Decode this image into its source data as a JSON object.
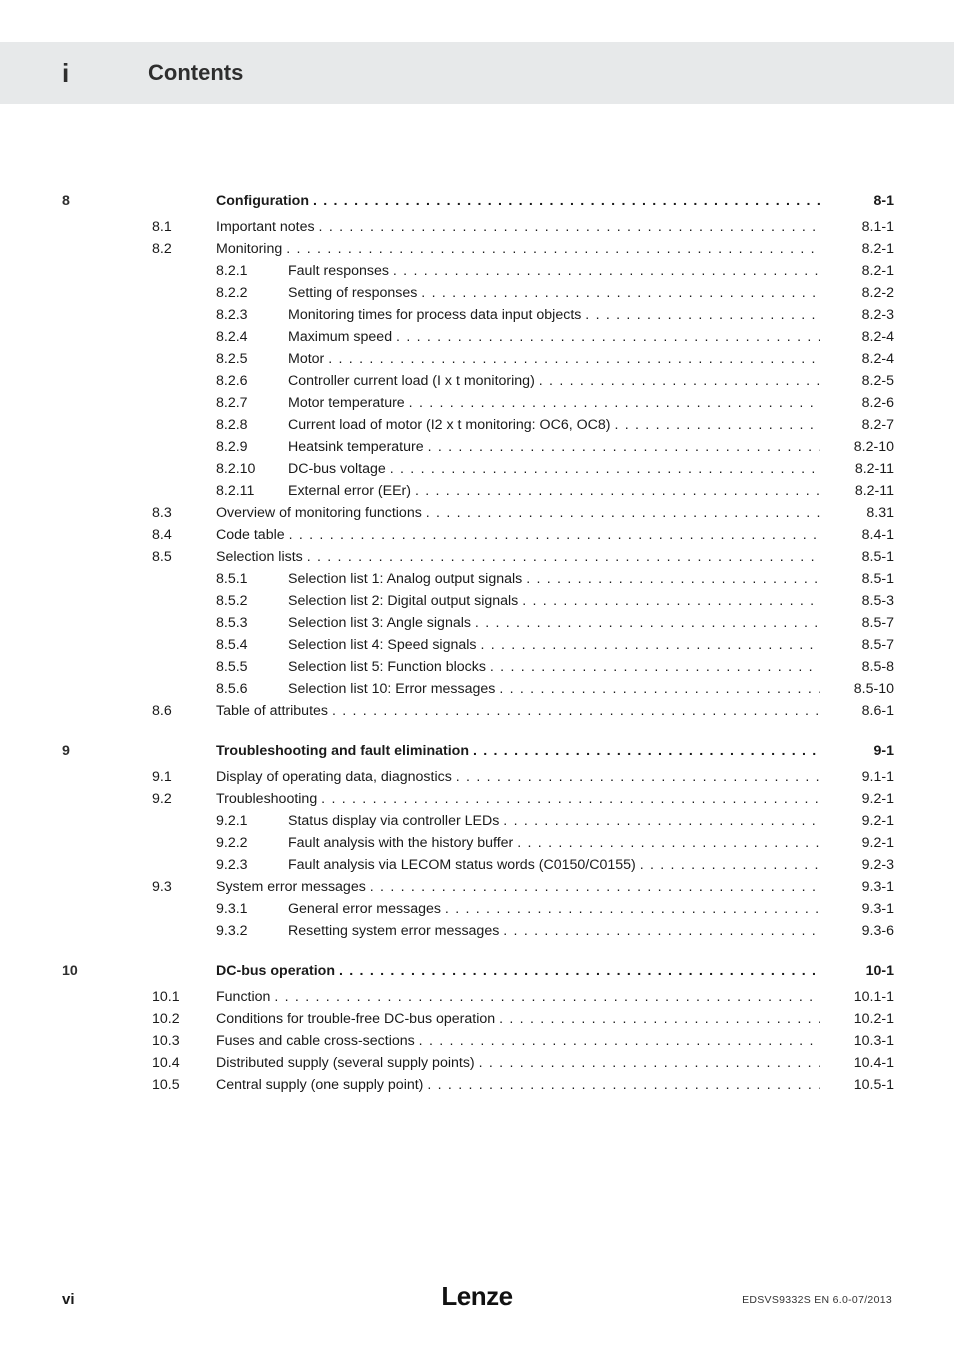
{
  "header": {
    "marker": "i",
    "title": "Contents"
  },
  "footer": {
    "page_roman": "vi",
    "logo": "Lenze",
    "doc_id": "EDSVS9332S EN 6.0-07/2013"
  },
  "rows": [
    {
      "type": "chap",
      "chap": "8",
      "label": "Configuration",
      "page": "8-1",
      "bold": true
    },
    {
      "type": "sec",
      "sec": "8.1",
      "label": "Important notes",
      "page": "8.1-1"
    },
    {
      "type": "sec",
      "sec": "8.2",
      "label": "Monitoring",
      "page": "8.2-1"
    },
    {
      "type": "sub",
      "sub": "8.2.1",
      "label": "Fault responses",
      "page": "8.2-1"
    },
    {
      "type": "sub",
      "sub": "8.2.2",
      "label": "Setting of responses",
      "page": "8.2-2"
    },
    {
      "type": "sub",
      "sub": "8.2.3",
      "label": "Monitoring times for process data input objects",
      "page": "8.2-3"
    },
    {
      "type": "sub",
      "sub": "8.2.4",
      "label": "Maximum speed",
      "page": "8.2-4"
    },
    {
      "type": "sub",
      "sub": "8.2.5",
      "label": "Motor",
      "page": "8.2-4"
    },
    {
      "type": "sub",
      "sub": "8.2.6",
      "label": "Controller current load (I x t monitoring)",
      "page": "8.2-5"
    },
    {
      "type": "sub",
      "sub": "8.2.7",
      "label": "Motor temperature",
      "page": "8.2-6"
    },
    {
      "type": "sub",
      "sub": "8.2.8",
      "label": "Current load of motor (I2 x t monitoring: OC6, OC8)",
      "page": "8.2-7"
    },
    {
      "type": "sub",
      "sub": "8.2.9",
      "label": "Heatsink temperature",
      "page": "8.2-10"
    },
    {
      "type": "sub",
      "sub": "8.2.10",
      "label": "DC-bus voltage",
      "page": "8.2-11"
    },
    {
      "type": "sub",
      "sub": "8.2.11",
      "label": "External error (EEr)",
      "page": "8.2-11"
    },
    {
      "type": "sec",
      "sec": "8.3",
      "label": "Overview of monitoring functions",
      "page": "8.31"
    },
    {
      "type": "sec",
      "sec": "8.4",
      "label": "Code table",
      "page": "8.4-1"
    },
    {
      "type": "sec",
      "sec": "8.5",
      "label": "Selection lists",
      "page": "8.5-1"
    },
    {
      "type": "sub",
      "sub": "8.5.1",
      "label": "Selection list 1: Analog  output signals",
      "page": "8.5-1"
    },
    {
      "type": "sub",
      "sub": "8.5.2",
      "label": "Selection list 2: Digital output signals",
      "page": "8.5-3"
    },
    {
      "type": "sub",
      "sub": "8.5.3",
      "label": "Selection list 3: Angle signals",
      "page": "8.5-7"
    },
    {
      "type": "sub",
      "sub": "8.5.4",
      "label": "Selection list 4: Speed signals",
      "page": "8.5-7"
    },
    {
      "type": "sub",
      "sub": "8.5.5",
      "label": "Selection list 5: Function blocks",
      "page": "8.5-8"
    },
    {
      "type": "sub",
      "sub": "8.5.6",
      "label": "Selection list 10: Error messages",
      "page": "8.5-10"
    },
    {
      "type": "sec",
      "sec": "8.6",
      "label": "Table of attributes",
      "page": "8.6-1"
    },
    {
      "type": "gap"
    },
    {
      "type": "chap",
      "chap": "9",
      "label": "Troubleshooting and fault elimination",
      "page": "9-1",
      "bold": true
    },
    {
      "type": "sec",
      "sec": "9.1",
      "label": "Display of operating data, diagnostics",
      "page": "9.1-1"
    },
    {
      "type": "sec",
      "sec": "9.2",
      "label": "Troubleshooting",
      "page": "9.2-1"
    },
    {
      "type": "sub",
      "sub": "9.2.1",
      "label": "Status display via controller LEDs",
      "page": "9.2-1"
    },
    {
      "type": "sub",
      "sub": "9.2.2",
      "label": "Fault analysis with the history buffer",
      "page": "9.2-1"
    },
    {
      "type": "sub",
      "sub": "9.2.3",
      "label": "Fault analysis via LECOM status words (C0150/C0155)",
      "page": "9.2-3"
    },
    {
      "type": "sec",
      "sec": "9.3",
      "label": "System error messages",
      "page": "9.3-1"
    },
    {
      "type": "sub",
      "sub": "9.3.1",
      "label": "General error messages",
      "page": "9.3-1"
    },
    {
      "type": "sub",
      "sub": "9.3.2",
      "label": "Resetting system error messages",
      "page": "9.3-6"
    },
    {
      "type": "gap"
    },
    {
      "type": "chap",
      "chap": "10",
      "label": "DC-bus operation",
      "page": "10-1",
      "bold": true
    },
    {
      "type": "sec",
      "sec": "10.1",
      "label": "Function",
      "page": "10.1-1"
    },
    {
      "type": "sec",
      "sec": "10.2",
      "label": "Conditions for trouble-free DC-bus operation",
      "page": "10.2-1"
    },
    {
      "type": "sec",
      "sec": "10.3",
      "label": "Fuses and cable cross-sections",
      "page": "10.3-1"
    },
    {
      "type": "sec",
      "sec": "10.4",
      "label": "Distributed supply (several supply points)",
      "page": "10.4-1"
    },
    {
      "type": "sec",
      "sec": "10.5",
      "label": "Central supply (one supply point)",
      "page": "10.5-1"
    }
  ]
}
